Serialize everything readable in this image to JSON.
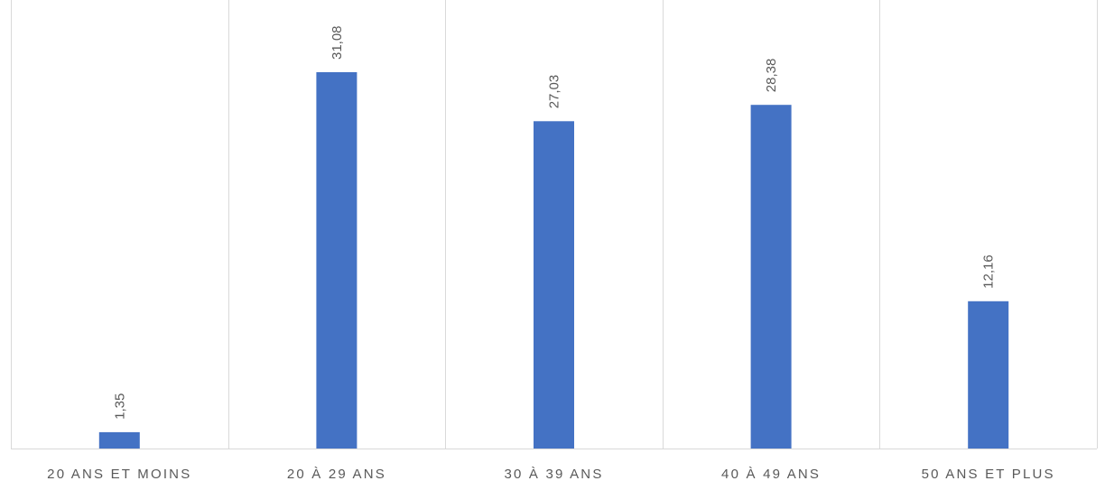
{
  "chart_data": {
    "type": "bar",
    "categories": [
      "20 ANS ET MOINS",
      "20 À 29 ANS",
      "30 À 39 ANS",
      "40 À 49 ANS",
      "50 ANS ET PLUS"
    ],
    "values": [
      1.35,
      31.08,
      27.03,
      28.38,
      12.16
    ],
    "value_labels": [
      "1,35",
      "31,08",
      "27,03",
      "28,38",
      "12,16"
    ],
    "title": "",
    "xlabel": "",
    "ylabel": "",
    "ylim": [
      0,
      31.08
    ],
    "grid": "vertical separators between categories",
    "legend": "none",
    "bar_color": "#4472c4",
    "gridline_color": "#d9d9d9",
    "label_color": "#595959"
  }
}
